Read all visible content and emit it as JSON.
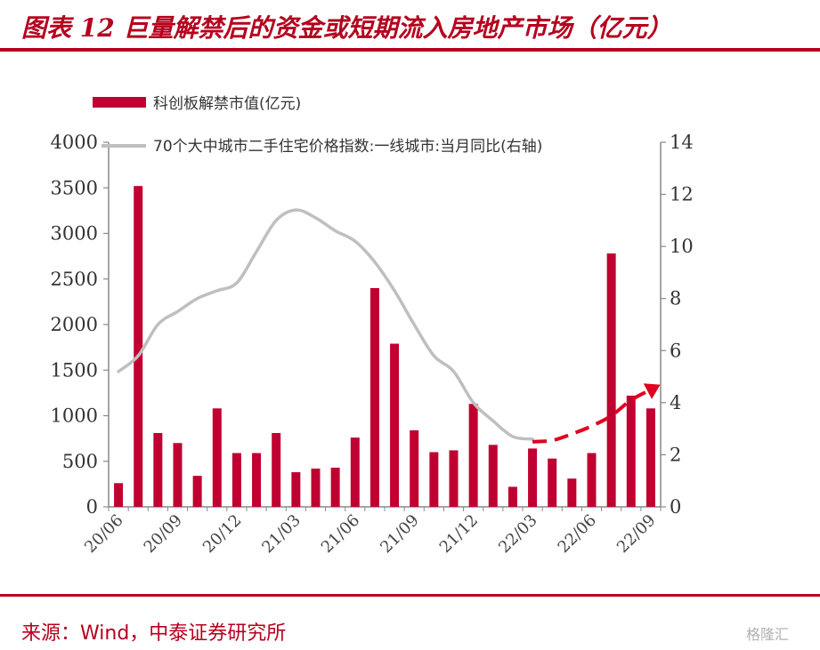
{
  "title": "图表 12 巨量解禁后的资金或短期流入房地产市场（亿元）",
  "source": "来源：Wind，中泰证券研究所",
  "watermark": "格隆汇",
  "colors": {
    "brand": "#b5001e",
    "bar": "#c00030",
    "line": "#bfbfbf",
    "arrow": "#e00020"
  },
  "chart_data": {
    "type": "bar",
    "categories": [
      "20/06",
      "20/07",
      "20/08",
      "20/09",
      "20/10",
      "20/11",
      "20/12",
      "21/01",
      "21/02",
      "21/03",
      "21/04",
      "21/05",
      "21/06",
      "21/07",
      "21/08",
      "21/09",
      "21/10",
      "21/11",
      "21/12",
      "22/01",
      "22/02",
      "22/03",
      "22/04",
      "22/05",
      "22/06",
      "22/07",
      "22/08",
      "22/09"
    ],
    "x_tick_labels": [
      "20/06",
      "20/09",
      "20/12",
      "21/03",
      "21/06",
      "21/09",
      "21/12",
      "22/03",
      "22/06",
      "22/09"
    ],
    "series": [
      {
        "name": "科创板解禁市值(亿元)",
        "type": "bar",
        "axis": "left",
        "values": [
          260,
          3520,
          810,
          700,
          340,
          1080,
          590,
          590,
          810,
          380,
          420,
          430,
          760,
          2400,
          1790,
          840,
          600,
          620,
          1130,
          680,
          220,
          640,
          530,
          310,
          590,
          2780,
          1220,
          1080
        ]
      },
      {
        "name": "70个大中城市二手住宅价格指数:一线城市:当月同比(右轴)",
        "type": "line",
        "axis": "right",
        "values": [
          5.2,
          5.8,
          7.0,
          7.5,
          8.0,
          8.3,
          8.6,
          9.8,
          11.0,
          11.4,
          11.1,
          10.6,
          10.2,
          9.4,
          8.3,
          7.0,
          5.8,
          5.2,
          4.0,
          3.3,
          2.7,
          2.6,
          null,
          null,
          null,
          null,
          null,
          null
        ]
      },
      {
        "type": "line-projection",
        "axis": "right",
        "values": [
          null,
          null,
          null,
          null,
          null,
          null,
          null,
          null,
          null,
          null,
          null,
          null,
          null,
          null,
          null,
          null,
          null,
          null,
          null,
          null,
          null,
          2.5,
          2.55,
          2.8,
          3.1,
          3.5,
          4.1,
          4.5
        ]
      }
    ],
    "ylim_left": [
      0,
      4000
    ],
    "ylim_right": [
      0,
      14
    ],
    "yticks_left": [
      0,
      500,
      1000,
      1500,
      2000,
      2500,
      3000,
      3500,
      4000
    ],
    "yticks_right": [
      0,
      2,
      4,
      6,
      8,
      10,
      12,
      14
    ],
    "legend_position": "top-left",
    "grid": false
  }
}
